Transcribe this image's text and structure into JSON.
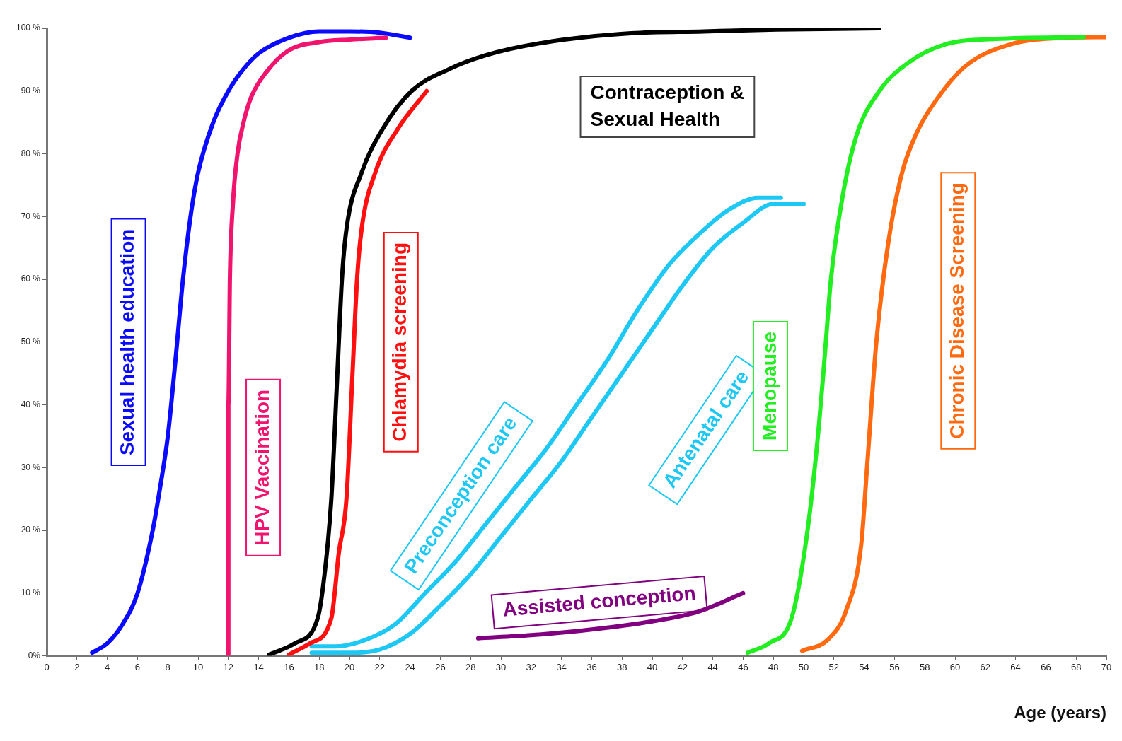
{
  "chart_data": {
    "type": "line",
    "xlabel": "Age (years)",
    "xlim": [
      0,
      70
    ],
    "ylim": [
      0,
      100
    ],
    "xticks": [
      0,
      2,
      4,
      6,
      8,
      10,
      12,
      14,
      16,
      18,
      20,
      22,
      24,
      26,
      28,
      30,
      32,
      34,
      36,
      38,
      40,
      42,
      44,
      46,
      48,
      50,
      52,
      54,
      56,
      58,
      60,
      62,
      64,
      66,
      68,
      70
    ],
    "yticks": [
      {
        "value": 0,
        "label": "0%"
      },
      {
        "value": 10,
        "label": "10 %"
      },
      {
        "value": 20,
        "label": "20 %"
      },
      {
        "value": 30,
        "label": "30 %"
      },
      {
        "value": 40,
        "label": "40 %"
      },
      {
        "value": 50,
        "label": "50 %"
      },
      {
        "value": 60,
        "label": "60 %"
      },
      {
        "value": 70,
        "label": "70 %"
      },
      {
        "value": 80,
        "label": "80 %"
      },
      {
        "value": 90,
        "label": "90 %"
      },
      {
        "value": 100,
        "label": "100 %"
      }
    ],
    "grid": false,
    "legend": false,
    "marker": "none",
    "line_style": "solid",
    "series": [
      {
        "name": "Sexual health education",
        "color": "#0a0aff",
        "x": [
          3,
          4,
          5,
          6,
          7,
          7.5,
          8,
          8.5,
          9,
          9.5,
          10,
          11,
          12,
          13,
          14,
          16,
          18,
          20,
          22,
          24
        ],
        "values": [
          0.5,
          2,
          5,
          10,
          20,
          27,
          35,
          47,
          60,
          70,
          77,
          85,
          90,
          93.5,
          96,
          98.5,
          99.5,
          99.5,
          99.3,
          98.5
        ]
      },
      {
        "name": "HPV Vaccination",
        "color": "#f0146e",
        "x": [
          12,
          12,
          12,
          12.1,
          12.3,
          12.6,
          13,
          13.5,
          14.5,
          16,
          18,
          20,
          22.4
        ],
        "values": [
          0,
          20,
          40,
          60,
          72,
          80,
          85,
          89,
          93,
          96.5,
          97.8,
          98.2,
          98.5
        ]
      },
      {
        "name": "Chlamydia screening",
        "color": "#ff1010",
        "x": [
          16,
          17.4,
          18.8,
          19.3,
          19.8,
          20.2,
          20.5,
          20.8,
          21.7,
          23.2,
          25.1
        ],
        "values": [
          0.2,
          2,
          6,
          16.5,
          25,
          45,
          60,
          68,
          77,
          84,
          90
        ]
      },
      {
        "name": "Contraception & Sexual Health",
        "color": "#000000",
        "x": [
          14.7,
          16.4,
          17.9,
          18.4,
          18.8,
          19.2,
          19.5,
          19.8,
          20.8,
          22.2,
          24.1,
          26.5,
          29,
          32.8,
          38.6,
          43.4,
          48.2,
          55
        ],
        "values": [
          0.2,
          2,
          6,
          14,
          25,
          45,
          60,
          68,
          77,
          84,
          90,
          93.4,
          95.7,
          97.7,
          99.2,
          99.5,
          99.8,
          100
        ]
      },
      {
        "name": "Preconception care",
        "color": "#1ec8f5",
        "x": [
          17.5,
          19,
          21,
          23,
          25,
          27,
          29,
          31,
          33,
          35,
          37,
          39,
          41,
          43,
          45,
          47,
          48.5
        ],
        "values": [
          1.5,
          1.5,
          2.5,
          5,
          10,
          15,
          21,
          27,
          33,
          40,
          47,
          55,
          62,
          67,
          71,
          73,
          73
        ]
      },
      {
        "name": "Antenatal care",
        "color": "#1ec8f5",
        "x": [
          17.5,
          20,
          22,
          24,
          26,
          28,
          30,
          32,
          34,
          36,
          38,
          40,
          42,
          44,
          46,
          48,
          50
        ],
        "values": [
          0.5,
          0.5,
          1,
          3.5,
          8,
          13,
          19,
          25,
          31,
          38,
          45,
          52,
          59,
          65,
          69,
          72,
          72
        ]
      },
      {
        "name": "Assisted conception",
        "color": "#800080",
        "x": [
          28.5,
          32,
          36,
          40,
          43,
          46
        ],
        "values": [
          2.8,
          3.3,
          4.2,
          5.5,
          7,
          10
        ]
      },
      {
        "name": "Menopause",
        "color": "#22ee22",
        "x": [
          46.3,
          47.7,
          49.2,
          50.2,
          50.9,
          51.4,
          51.8,
          52.6,
          53.5,
          55,
          56.9,
          59.3,
          62.7,
          68.5
        ],
        "values": [
          0.5,
          2,
          6,
          19,
          34,
          48,
          60,
          73.6,
          83,
          90,
          94.5,
          97.4,
          98.3,
          98.6
        ]
      },
      {
        "name": "Chronic Disease Screening",
        "color": "#ff6a10",
        "x": [
          49.9,
          51.6,
          52.8,
          53.8,
          54.2,
          54.8,
          55.6,
          56.5,
          57.4,
          58.8,
          60.7,
          63.6,
          67.5,
          70
        ],
        "values": [
          0.8,
          2.6,
          7.2,
          17.7,
          30.5,
          50,
          66,
          77,
          83,
          88.7,
          94,
          97.4,
          98.5,
          98.6
        ]
      }
    ]
  }
}
